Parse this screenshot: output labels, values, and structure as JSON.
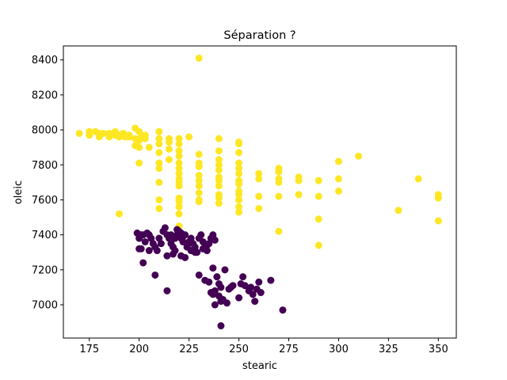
{
  "chart_data": {
    "type": "scatter",
    "title": "Séparation ?",
    "xlabel": "stearic",
    "ylabel": "oleic",
    "xlim": [
      162,
      359
    ],
    "ylim": [
      6810,
      8480
    ],
    "xticks": [
      175,
      200,
      225,
      250,
      275,
      300,
      325,
      350
    ],
    "yticks": [
      7000,
      7200,
      7400,
      7600,
      7800,
      8000,
      8200,
      8400
    ],
    "grid": false,
    "series": [
      {
        "name": "yellow group",
        "color": "#fde725",
        "points": [
          [
            230,
            8410
          ],
          [
            170,
            7980
          ],
          [
            175,
            7990
          ],
          [
            175,
            7970
          ],
          [
            178,
            7990
          ],
          [
            180,
            7980
          ],
          [
            180,
            7960
          ],
          [
            182,
            7980
          ],
          [
            185,
            7960
          ],
          [
            185,
            7980
          ],
          [
            188,
            7970
          ],
          [
            188,
            7990
          ],
          [
            190,
            7970
          ],
          [
            190,
            7960
          ],
          [
            192,
            7980
          ],
          [
            193,
            7960
          ],
          [
            195,
            7960
          ],
          [
            195,
            7970
          ],
          [
            198,
            8010
          ],
          [
            198,
            7950
          ],
          [
            198,
            7910
          ],
          [
            200,
            7990
          ],
          [
            200,
            7940
          ],
          [
            200,
            7900
          ],
          [
            201,
            7960
          ],
          [
            203,
            7970
          ],
          [
            203,
            7950
          ],
          [
            205,
            7900
          ],
          [
            210,
            7990
          ],
          [
            210,
            7950
          ],
          [
            210,
            7920
          ],
          [
            210,
            7870
          ],
          [
            210,
            7810
          ],
          [
            210,
            7780
          ],
          [
            210,
            7700
          ],
          [
            210,
            7600
          ],
          [
            210,
            7550
          ],
          [
            215,
            7950
          ],
          [
            215,
            7930
          ],
          [
            215,
            7890
          ],
          [
            215,
            7830
          ],
          [
            200,
            7810
          ],
          [
            220,
            7950
          ],
          [
            220,
            7920
          ],
          [
            220,
            7880
          ],
          [
            220,
            7850
          ],
          [
            220,
            7810
          ],
          [
            220,
            7780
          ],
          [
            220,
            7750
          ],
          [
            220,
            7720
          ],
          [
            220,
            7700
          ],
          [
            220,
            7680
          ],
          [
            220,
            7610
          ],
          [
            220,
            7590
          ],
          [
            220,
            7560
          ],
          [
            220,
            7520
          ],
          [
            220,
            7450
          ],
          [
            225,
            7960
          ],
          [
            230,
            7860
          ],
          [
            230,
            7810
          ],
          [
            230,
            7790
          ],
          [
            230,
            7740
          ],
          [
            230,
            7710
          ],
          [
            230,
            7680
          ],
          [
            230,
            7640
          ],
          [
            230,
            7600
          ],
          [
            230,
            7590
          ],
          [
            240,
            7950
          ],
          [
            240,
            7880
          ],
          [
            240,
            7830
          ],
          [
            240,
            7800
          ],
          [
            240,
            7770
          ],
          [
            240,
            7730
          ],
          [
            240,
            7710
          ],
          [
            240,
            7680
          ],
          [
            240,
            7630
          ],
          [
            240,
            7610
          ],
          [
            240,
            7580
          ],
          [
            250,
            7930
          ],
          [
            250,
            7920
          ],
          [
            250,
            7870
          ],
          [
            250,
            7810
          ],
          [
            250,
            7780
          ],
          [
            250,
            7750
          ],
          [
            250,
            7710
          ],
          [
            250,
            7690
          ],
          [
            250,
            7650
          ],
          [
            250,
            7630
          ],
          [
            250,
            7600
          ],
          [
            250,
            7560
          ],
          [
            250,
            7530
          ],
          [
            260,
            7750
          ],
          [
            260,
            7720
          ],
          [
            260,
            7620
          ],
          [
            260,
            7550
          ],
          [
            270,
            7780
          ],
          [
            270,
            7760
          ],
          [
            270,
            7720
          ],
          [
            270,
            7700
          ],
          [
            270,
            7620
          ],
          [
            270,
            7420
          ],
          [
            280,
            7730
          ],
          [
            280,
            7710
          ],
          [
            280,
            7630
          ],
          [
            290,
            7710
          ],
          [
            290,
            7620
          ],
          [
            290,
            7490
          ],
          [
            290,
            7340
          ],
          [
            300,
            7820
          ],
          [
            300,
            7720
          ],
          [
            300,
            7650
          ],
          [
            310,
            7850
          ],
          [
            330,
            7540
          ],
          [
            340,
            7720
          ],
          [
            350,
            7630
          ],
          [
            350,
            7610
          ],
          [
            350,
            7480
          ],
          [
            190,
            7520
          ]
        ]
      },
      {
        "name": "purple group",
        "color": "#440154",
        "points": [
          [
            199,
            7410
          ],
          [
            200,
            7380
          ],
          [
            201,
            7400
          ],
          [
            202,
            7400
          ],
          [
            203,
            7360
          ],
          [
            204,
            7410
          ],
          [
            205,
            7400
          ],
          [
            206,
            7380
          ],
          [
            207,
            7350
          ],
          [
            208,
            7330
          ],
          [
            209,
            7310
          ],
          [
            210,
            7380
          ],
          [
            211,
            7350
          ],
          [
            212,
            7420
          ],
          [
            213,
            7440
          ],
          [
            214,
            7400
          ],
          [
            215,
            7380
          ],
          [
            216,
            7350
          ],
          [
            217,
            7330
          ],
          [
            218,
            7310
          ],
          [
            219,
            7400
          ],
          [
            220,
            7420
          ],
          [
            221,
            7380
          ],
          [
            222,
            7360
          ],
          [
            223,
            7400
          ],
          [
            224,
            7330
          ],
          [
            225,
            7360
          ],
          [
            226,
            7380
          ],
          [
            227,
            7350
          ],
          [
            228,
            7330
          ],
          [
            229,
            7300
          ],
          [
            230,
            7380
          ],
          [
            231,
            7400
          ],
          [
            232,
            7360
          ],
          [
            233,
            7330
          ],
          [
            234,
            7310
          ],
          [
            235,
            7350
          ],
          [
            236,
            7380
          ],
          [
            237,
            7400
          ],
          [
            238,
            7370
          ],
          [
            219,
            7430
          ],
          [
            221,
            7410
          ],
          [
            222,
            7390
          ],
          [
            218,
            7380
          ],
          [
            216,
            7400
          ],
          [
            200,
            7320
          ],
          [
            201,
            7320
          ],
          [
            205,
            7310
          ],
          [
            202,
            7240
          ],
          [
            208,
            7170
          ],
          [
            214,
            7080
          ],
          [
            214,
            7280
          ],
          [
            217,
            7290
          ],
          [
            221,
            7280
          ],
          [
            223,
            7270
          ],
          [
            226,
            7310
          ],
          [
            228,
            7300
          ],
          [
            232,
            7320
          ],
          [
            233,
            7140
          ],
          [
            235,
            7130
          ],
          [
            236,
            7070
          ],
          [
            237,
            7060
          ],
          [
            238,
            7080
          ],
          [
            237,
            7210
          ],
          [
            238,
            7000
          ],
          [
            239,
            7160
          ],
          [
            240,
            7120
          ],
          [
            240,
            7050
          ],
          [
            241,
            7020
          ],
          [
            241,
            7100
          ],
          [
            242,
            7030
          ],
          [
            243,
            7200
          ],
          [
            244,
            7010
          ],
          [
            245,
            7090
          ],
          [
            246,
            7100
          ],
          [
            247,
            7110
          ],
          [
            250,
            7040
          ],
          [
            251,
            7120
          ],
          [
            252,
            7160
          ],
          [
            253,
            7110
          ],
          [
            255,
            7080
          ],
          [
            256,
            7100
          ],
          [
            257,
            7060
          ],
          [
            258,
            7020
          ],
          [
            259,
            7090
          ],
          [
            260,
            7130
          ],
          [
            261,
            7070
          ],
          [
            266,
            7140
          ],
          [
            272,
            6970
          ],
          [
            241,
            6880
          ],
          [
            230,
            7170
          ],
          [
            234,
            7340
          ]
        ]
      }
    ]
  }
}
